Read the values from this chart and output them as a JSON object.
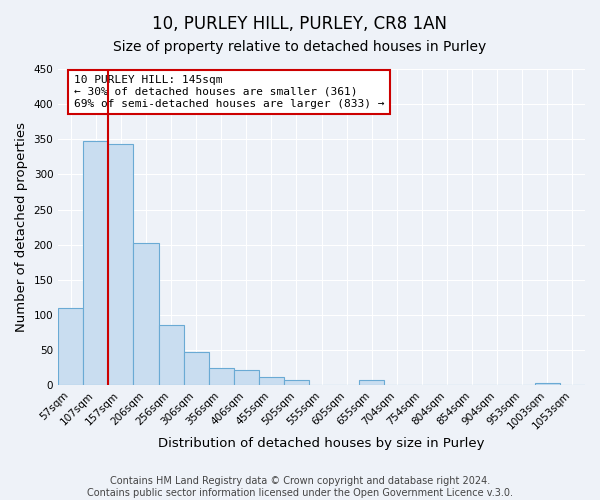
{
  "title": "10, PURLEY HILL, PURLEY, CR8 1AN",
  "subtitle": "Size of property relative to detached houses in Purley",
  "xlabel": "Distribution of detached houses by size in Purley",
  "ylabel": "Number of detached properties",
  "bin_labels": [
    "57sqm",
    "107sqm",
    "157sqm",
    "206sqm",
    "256sqm",
    "306sqm",
    "356sqm",
    "406sqm",
    "455sqm",
    "505sqm",
    "555sqm",
    "605sqm",
    "655sqm",
    "704sqm",
    "754sqm",
    "804sqm",
    "854sqm",
    "904sqm",
    "953sqm",
    "1003sqm",
    "1053sqm"
  ],
  "bar_heights": [
    110,
    348,
    343,
    203,
    85,
    47,
    25,
    22,
    12,
    7,
    0,
    0,
    8,
    0,
    0,
    0,
    0,
    0,
    0,
    3,
    0
  ],
  "bar_color": "#c9ddf0",
  "bar_edge_color": "#6aaad4",
  "red_line_x": 1.5,
  "red_line_color": "#cc0000",
  "ylim": [
    0,
    450
  ],
  "yticks": [
    0,
    50,
    100,
    150,
    200,
    250,
    300,
    350,
    400,
    450
  ],
  "annotation_line1": "10 PURLEY HILL: 145sqm",
  "annotation_line2": "← 30% of detached houses are smaller (361)",
  "annotation_line3": "69% of semi-detached houses are larger (833) →",
  "annotation_box_color": "#ffffff",
  "annotation_box_edge": "#cc0000",
  "footer_line1": "Contains HM Land Registry data © Crown copyright and database right 2024.",
  "footer_line2": "Contains public sector information licensed under the Open Government Licence v.3.0.",
  "background_color": "#eef2f8",
  "grid_color": "#ffffff",
  "title_fontsize": 12,
  "subtitle_fontsize": 10,
  "axis_label_fontsize": 9.5,
  "tick_fontsize": 7.5,
  "annotation_fontsize": 8,
  "footer_fontsize": 7
}
